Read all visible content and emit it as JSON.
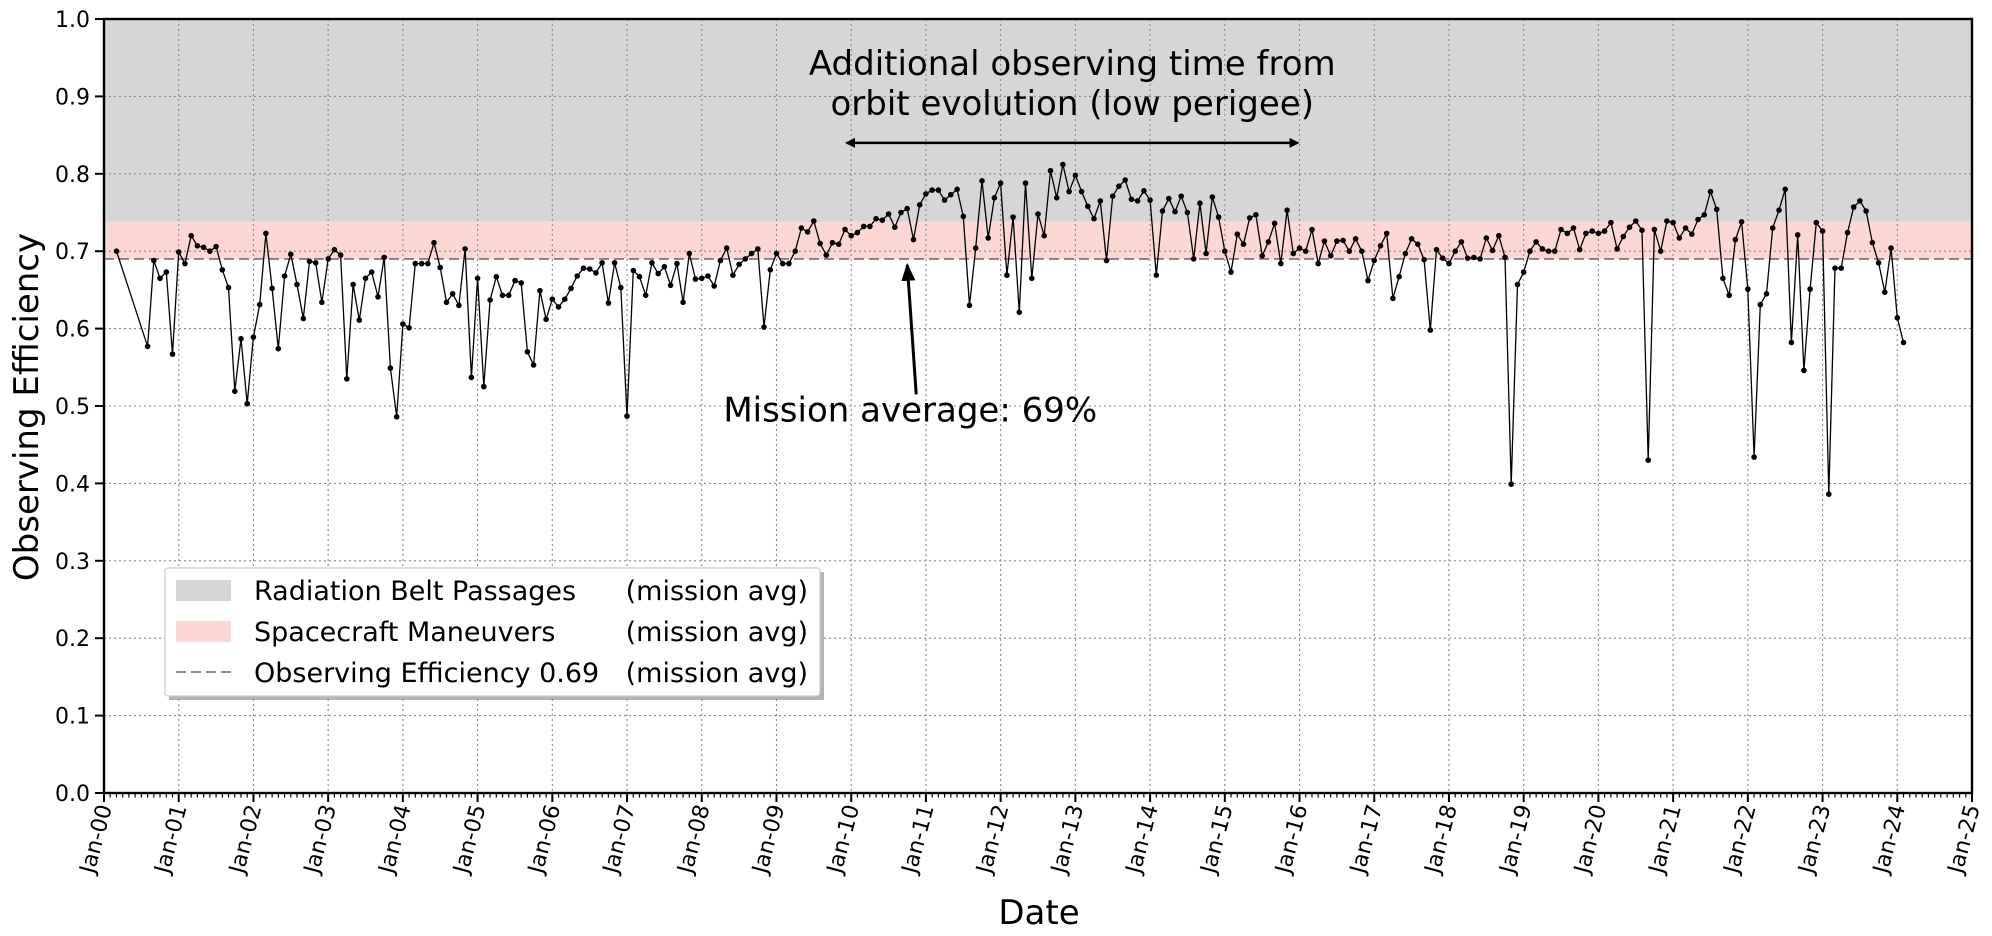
{
  "chart_data": {
    "type": "line",
    "ylabel": "Observing Efficiency",
    "xlabel": "Date",
    "ylim": [
      0.0,
      1.0
    ],
    "xlim": [
      "2000-01",
      "2025-01"
    ],
    "yticks": [
      "0.0",
      "0.1",
      "0.2",
      "0.3",
      "0.4",
      "0.5",
      "0.6",
      "0.7",
      "0.8",
      "0.9",
      "1.0"
    ],
    "xticks": [
      "Jan-00",
      "Jan-01",
      "Jan-02",
      "Jan-03",
      "Jan-04",
      "Jan-05",
      "Jan-06",
      "Jan-07",
      "Jan-08",
      "Jan-09",
      "Jan-10",
      "Jan-11",
      "Jan-12",
      "Jan-13",
      "Jan-14",
      "Jan-15",
      "Jan-16",
      "Jan-17",
      "Jan-18",
      "Jan-19",
      "Jan-20",
      "Jan-21",
      "Jan-22",
      "Jan-23",
      "Jan-24",
      "Jan-25"
    ],
    "grid": true,
    "bands": [
      {
        "name": "Radiation Belt Passages",
        "from": 0.738,
        "to": 1.0,
        "color": "#d6d6d6"
      },
      {
        "name": "Spacecraft Maneuvers",
        "from": 0.69,
        "to": 0.738,
        "color": "#fdd7d4"
      }
    ],
    "reference_line": {
      "value": 0.69,
      "label": "Observing Efficiency 0.69",
      "color": "#808080",
      "style": "dashed"
    },
    "annotations": [
      {
        "text": [
          "Additional observing time from",
          "orbit evolution (low perigee)"
        ],
        "arrow": "double",
        "from_date": "2009-12",
        "to_date": "2016-01",
        "y": 0.84
      },
      {
        "text": [
          "Mission average: 69%"
        ],
        "arrow": "single",
        "point_date": "2010-10",
        "point_y": 0.685
      }
    ],
    "legend": {
      "placement": "lower-left",
      "entries": [
        {
          "label": "Radiation Belt Passages",
          "suffix": "(mission avg)",
          "swatch": "band",
          "color": "#d6d6d6"
        },
        {
          "label": "Spacecraft Maneuvers",
          "suffix": "(mission avg)",
          "swatch": "band",
          "color": "#fdd7d4"
        },
        {
          "label": "Observing Efficiency 0.69",
          "suffix": "(mission avg)",
          "swatch": "dashed",
          "color": "#808080"
        }
      ]
    },
    "series": [
      {
        "color": "#000000",
        "x": [
          "2000-03",
          "2000-08",
          "2000-09",
          "2000-10",
          "2000-11",
          "2000-12",
          "2001-01",
          "2001-02",
          "2001-03",
          "2001-04",
          "2001-05",
          "2001-06",
          "2001-07",
          "2001-08",
          "2001-09",
          "2001-10",
          "2001-11",
          "2001-12",
          "2002-01",
          "2002-02",
          "2002-03",
          "2002-04",
          "2002-05",
          "2002-06",
          "2002-07",
          "2002-08",
          "2002-09",
          "2002-10",
          "2002-11",
          "2002-12",
          "2003-01",
          "2003-02",
          "2003-03",
          "2003-04",
          "2003-05",
          "2003-06",
          "2003-07",
          "2003-08",
          "2003-09",
          "2003-10",
          "2003-11",
          "2003-12",
          "2004-01",
          "2004-02",
          "2004-03",
          "2004-04",
          "2004-05",
          "2004-06",
          "2004-07",
          "2004-08",
          "2004-09",
          "2004-10",
          "2004-11",
          "2004-12",
          "2005-01",
          "2005-02",
          "2005-03",
          "2005-04",
          "2005-05",
          "2005-06",
          "2005-07",
          "2005-08",
          "2005-09",
          "2005-10",
          "2005-11",
          "2005-12",
          "2006-01",
          "2006-02",
          "2006-03",
          "2006-04",
          "2006-05",
          "2006-06",
          "2006-07",
          "2006-08",
          "2006-09",
          "2006-10",
          "2006-11",
          "2006-12",
          "2007-01",
          "2007-02",
          "2007-03",
          "2007-04",
          "2007-05",
          "2007-06",
          "2007-07",
          "2007-08",
          "2007-09",
          "2007-10",
          "2007-11",
          "2007-12",
          "2008-01",
          "2008-02",
          "2008-03",
          "2008-04",
          "2008-05",
          "2008-06",
          "2008-07",
          "2008-08",
          "2008-09",
          "2008-10",
          "2008-11",
          "2008-12",
          "2009-01",
          "2009-02",
          "2009-03",
          "2009-04",
          "2009-05",
          "2009-06",
          "2009-07",
          "2009-08",
          "2009-09",
          "2009-10",
          "2009-11",
          "2009-12",
          "2010-01",
          "2010-02",
          "2010-03",
          "2010-04",
          "2010-05",
          "2010-06",
          "2010-07",
          "2010-08",
          "2010-09",
          "2010-10",
          "2010-11",
          "2010-12",
          "2011-01",
          "2011-02",
          "2011-03",
          "2011-04",
          "2011-05",
          "2011-06",
          "2011-07",
          "2011-08",
          "2011-09",
          "2011-10",
          "2011-11",
          "2011-12",
          "2012-01",
          "2012-02",
          "2012-03",
          "2012-04",
          "2012-05",
          "2012-06",
          "2012-07",
          "2012-08",
          "2012-09",
          "2012-10",
          "2012-11",
          "2012-12",
          "2013-01",
          "2013-02",
          "2013-03",
          "2013-04",
          "2013-05",
          "2013-06",
          "2013-07",
          "2013-08",
          "2013-09",
          "2013-10",
          "2013-11",
          "2013-12",
          "2014-01",
          "2014-02",
          "2014-03",
          "2014-04",
          "2014-05",
          "2014-06",
          "2014-07",
          "2014-08",
          "2014-09",
          "2014-10",
          "2014-11",
          "2014-12",
          "2015-01",
          "2015-02",
          "2015-03",
          "2015-04",
          "2015-05",
          "2015-06",
          "2015-07",
          "2015-08",
          "2015-09",
          "2015-10",
          "2015-11",
          "2015-12",
          "2016-01",
          "2016-02",
          "2016-03",
          "2016-04",
          "2016-05",
          "2016-06",
          "2016-07",
          "2016-08",
          "2016-09",
          "2016-10",
          "2016-11",
          "2016-12",
          "2017-01",
          "2017-02",
          "2017-03",
          "2017-04",
          "2017-05",
          "2017-06",
          "2017-07",
          "2017-08",
          "2017-09",
          "2017-10",
          "2017-11",
          "2017-12",
          "2018-01",
          "2018-02",
          "2018-03",
          "2018-04",
          "2018-05",
          "2018-06",
          "2018-07",
          "2018-08",
          "2018-09",
          "2018-10",
          "2018-11",
          "2018-12",
          "2019-01",
          "2019-02",
          "2019-03",
          "2019-04",
          "2019-05",
          "2019-06",
          "2019-07",
          "2019-08",
          "2019-09",
          "2019-10",
          "2019-11",
          "2019-12",
          "2020-01",
          "2020-02",
          "2020-03",
          "2020-04",
          "2020-05",
          "2020-06",
          "2020-07",
          "2020-08",
          "2020-09",
          "2020-10",
          "2020-11",
          "2020-12",
          "2021-01",
          "2021-02",
          "2021-03",
          "2021-04",
          "2021-05",
          "2021-06",
          "2021-07",
          "2021-08",
          "2021-09",
          "2021-10",
          "2021-11",
          "2021-12",
          "2022-01",
          "2022-02",
          "2022-03",
          "2022-04",
          "2022-05",
          "2022-06",
          "2022-07",
          "2022-08",
          "2022-09",
          "2022-10",
          "2022-11",
          "2022-12",
          "2023-01",
          "2023-02",
          "2023-03",
          "2023-04",
          "2023-05",
          "2023-06",
          "2023-07",
          "2023-08",
          "2023-09",
          "2023-10",
          "2023-11",
          "2023-12",
          "2024-01",
          "2024-02"
        ],
        "y": [
          0.7,
          0.577,
          0.688,
          0.665,
          0.673,
          0.567,
          0.699,
          0.684,
          0.72,
          0.707,
          0.705,
          0.7,
          0.706,
          0.676,
          0.653,
          0.519,
          0.587,
          0.503,
          0.589,
          0.631,
          0.723,
          0.652,
          0.574,
          0.668,
          0.696,
          0.657,
          0.613,
          0.687,
          0.685,
          0.634,
          0.69,
          0.702,
          0.695,
          0.535,
          0.657,
          0.611,
          0.665,
          0.673,
          0.641,
          0.692,
          0.549,
          0.486,
          0.606,
          0.601,
          0.684,
          0.684,
          0.684,
          0.711,
          0.679,
          0.634,
          0.645,
          0.63,
          0.703,
          0.537,
          0.665,
          0.525,
          0.637,
          0.667,
          0.643,
          0.643,
          0.662,
          0.659,
          0.57,
          0.553,
          0.649,
          0.612,
          0.638,
          0.628,
          0.638,
          0.652,
          0.668,
          0.678,
          0.677,
          0.672,
          0.685,
          0.633,
          0.685,
          0.653,
          0.487,
          0.675,
          0.667,
          0.643,
          0.685,
          0.671,
          0.68,
          0.656,
          0.684,
          0.634,
          0.697,
          0.664,
          0.665,
          0.668,
          0.655,
          0.688,
          0.704,
          0.669,
          0.683,
          0.69,
          0.697,
          0.703,
          0.602,
          0.676,
          0.697,
          0.684,
          0.684,
          0.7,
          0.73,
          0.725,
          0.739,
          0.71,
          0.695,
          0.711,
          0.709,
          0.728,
          0.72,
          0.724,
          0.732,
          0.732,
          0.742,
          0.74,
          0.748,
          0.731,
          0.75,
          0.755,
          0.715,
          0.76,
          0.774,
          0.779,
          0.779,
          0.766,
          0.773,
          0.78,
          0.745,
          0.63,
          0.704,
          0.791,
          0.717,
          0.769,
          0.788,
          0.669,
          0.744,
          0.621,
          0.788,
          0.665,
          0.748,
          0.72,
          0.804,
          0.769,
          0.812,
          0.777,
          0.798,
          0.777,
          0.758,
          0.742,
          0.765,
          0.688,
          0.771,
          0.784,
          0.792,
          0.767,
          0.765,
          0.778,
          0.766,
          0.669,
          0.752,
          0.768,
          0.751,
          0.771,
          0.75,
          0.69,
          0.762,
          0.697,
          0.77,
          0.744,
          0.7,
          0.673,
          0.722,
          0.709,
          0.743,
          0.747,
          0.694,
          0.712,
          0.736,
          0.684,
          0.753,
          0.697,
          0.704,
          0.7,
          0.728,
          0.684,
          0.713,
          0.694,
          0.713,
          0.714,
          0.7,
          0.716,
          0.7,
          0.662,
          0.688,
          0.707,
          0.723,
          0.639,
          0.667,
          0.697,
          0.716,
          0.709,
          0.689,
          0.598,
          0.702,
          0.691,
          0.684,
          0.7,
          0.712,
          0.691,
          0.692,
          0.69,
          0.717,
          0.701,
          0.72,
          0.692,
          0.399,
          0.657,
          0.673,
          0.7,
          0.712,
          0.703,
          0.7,
          0.7,
          0.728,
          0.723,
          0.73,
          0.702,
          0.723,
          0.726,
          0.723,
          0.726,
          0.737,
          0.703,
          0.719,
          0.731,
          0.739,
          0.727,
          0.43,
          0.728,
          0.7,
          0.739,
          0.737,
          0.717,
          0.73,
          0.722,
          0.741,
          0.747,
          0.777,
          0.754,
          0.665,
          0.643,
          0.715,
          0.738,
          0.651,
          0.434,
          0.631,
          0.645,
          0.73,
          0.753,
          0.78,
          0.582,
          0.721,
          0.546,
          0.651,
          0.737,
          0.726,
          0.386,
          0.678,
          0.678,
          0.724,
          0.757,
          0.765,
          0.752,
          0.711,
          0.685,
          0.647,
          0.704,
          0.614,
          0.582
        ]
      }
    ]
  }
}
